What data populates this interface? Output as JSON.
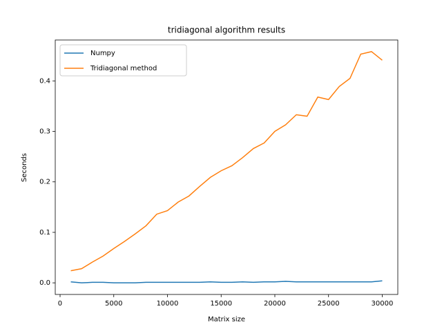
{
  "chart_data": {
    "type": "line",
    "title": "tridiagonal algorithm results",
    "x_label": "Matrix size",
    "y_label": "Seconds",
    "x": [
      1000,
      2000,
      3000,
      4000,
      5000,
      6000,
      7000,
      8000,
      9000,
      10000,
      11000,
      12000,
      13000,
      14000,
      15000,
      16000,
      17000,
      18000,
      19000,
      20000,
      21000,
      22000,
      23000,
      24000,
      25000,
      26000,
      27000,
      28000,
      29000,
      30000
    ],
    "series": [
      {
        "name": "Numpy",
        "color": "#1f77b4",
        "values": [
          0.002,
          0.0,
          0.001,
          0.001,
          0.0,
          0.0,
          0.0,
          0.001,
          0.001,
          0.001,
          0.001,
          0.001,
          0.001,
          0.002,
          0.001,
          0.001,
          0.002,
          0.001,
          0.002,
          0.002,
          0.003,
          0.002,
          0.002,
          0.002,
          0.002,
          0.002,
          0.002,
          0.002,
          0.002,
          0.004
        ]
      },
      {
        "name": "Tridiagonal method",
        "color": "#ff7f0e",
        "values": [
          0.024,
          0.028,
          0.041,
          0.053,
          0.068,
          0.082,
          0.097,
          0.113,
          0.136,
          0.143,
          0.16,
          0.172,
          0.191,
          0.209,
          0.222,
          0.232,
          0.248,
          0.266,
          0.277,
          0.3,
          0.313,
          0.333,
          0.33,
          0.368,
          0.363,
          0.389,
          0.405,
          0.453,
          0.458,
          0.441
        ]
      }
    ],
    "xlim": [
      -450,
      31450
    ],
    "xticks": [
      0,
      5000,
      10000,
      15000,
      20000,
      25000,
      30000
    ],
    "ylim": [
      -0.023,
      0.481
    ],
    "yticks": [
      {
        "value": 0,
        "label": "0.0"
      },
      0.1,
      0.2,
      0.3,
      0.4
    ],
    "legend": "upper left"
  }
}
